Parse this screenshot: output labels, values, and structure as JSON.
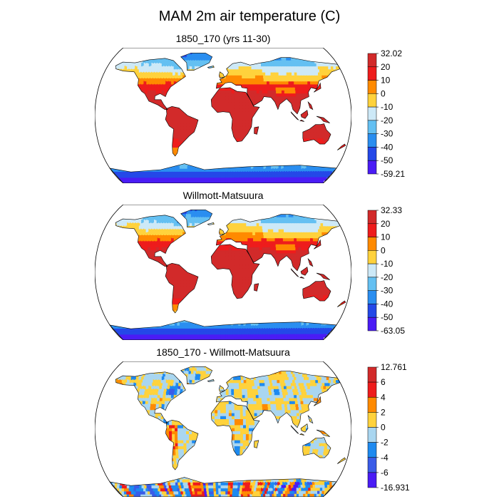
{
  "title": "MAM 2m air temperature (C)",
  "palette_temp": [
    "#d22a2a",
    "#ee1c1c",
    "#ff8a00",
    "#ffd23c",
    "#cde9f7",
    "#64c0f2",
    "#2a8ef0",
    "#2448e8",
    "#4a1cf5"
  ],
  "palette_diff": [
    "#d22a2a",
    "#ee1c1c",
    "#ff8a00",
    "#ffd23c",
    "#a9d6f0",
    "#1e8af0",
    "#3a5ce8",
    "#4a1cf5"
  ],
  "panels": [
    {
      "title": "1850_170 (yrs 11-30)",
      "kind": "temp",
      "colorbar_labels": [
        "32.02",
        "20",
        "10",
        "0",
        "-10",
        "-20",
        "-30",
        "-40",
        "-50",
        "-59.21"
      ]
    },
    {
      "title": "Willmott-Matsuura",
      "kind": "temp",
      "colorbar_labels": [
        "32.33",
        "20",
        "10",
        "0",
        "-10",
        "-20",
        "-30",
        "-40",
        "-50",
        "-63.05"
      ]
    },
    {
      "title": "1850_170 - Willmott-Matsuura",
      "kind": "diff",
      "colorbar_labels": [
        "12.761",
        "6",
        "4",
        "2",
        "0",
        "-2",
        "-4",
        "-6",
        "-16.931"
      ]
    }
  ]
}
